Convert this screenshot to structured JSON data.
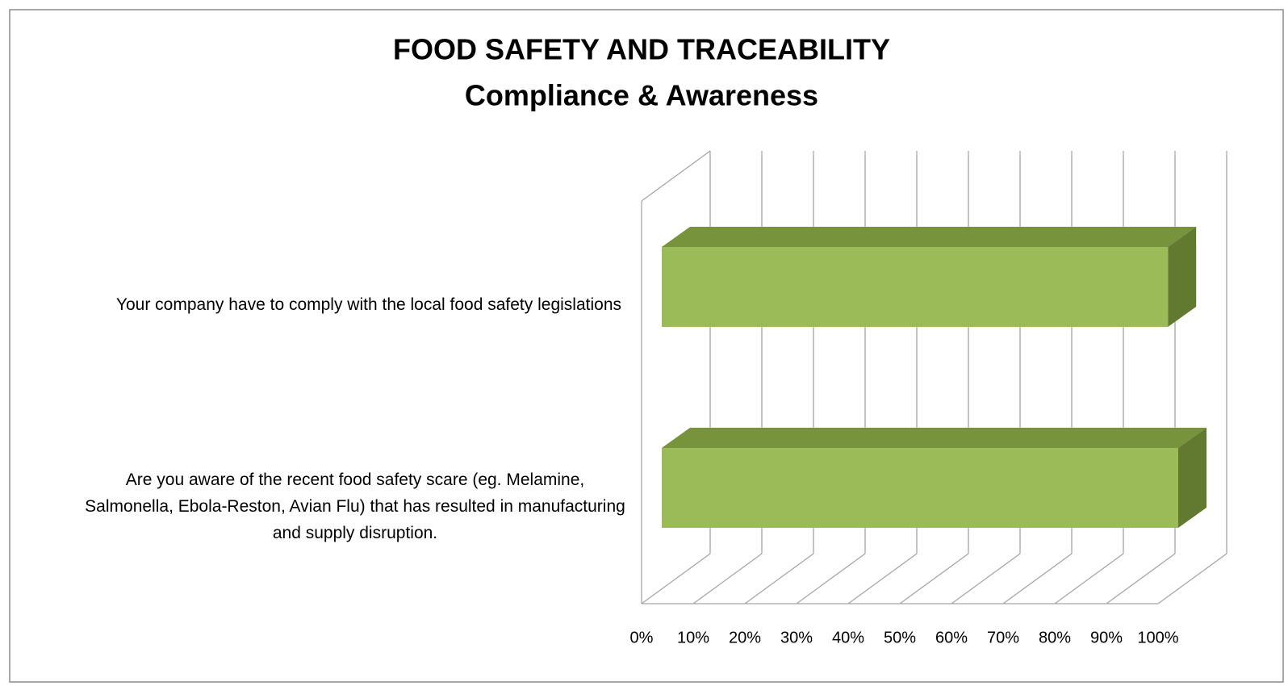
{
  "chart_data": {
    "type": "bar3d_horizontal",
    "title": "FOOD SAFETY AND TRACEABILITY",
    "subtitle": "Compliance & Awareness",
    "categories": [
      "Your company have to comply with the local food safety legislations",
      "Are you aware of the recent food safety scare (eg. Melamine, Salmonella, Ebola-Reston, Avian Flu) that has resulted in manufacturing and supply disruption."
    ],
    "values": [
      98,
      100
    ],
    "color": "#9bbb59",
    "xlim": [
      0,
      100
    ],
    "xticks": [
      {
        "value": 0,
        "label": "0%"
      },
      {
        "value": 10,
        "label": "10%"
      },
      {
        "value": 20,
        "label": "20%"
      },
      {
        "value": 30,
        "label": "30%"
      },
      {
        "value": 40,
        "label": "40%"
      },
      {
        "value": 50,
        "label": "50%"
      },
      {
        "value": 60,
        "label": "60%"
      },
      {
        "value": 70,
        "label": "70%"
      },
      {
        "value": 80,
        "label": "80%"
      },
      {
        "value": 90,
        "label": "90%"
      },
      {
        "value": 100,
        "label": "100%"
      }
    ],
    "grid": true
  }
}
